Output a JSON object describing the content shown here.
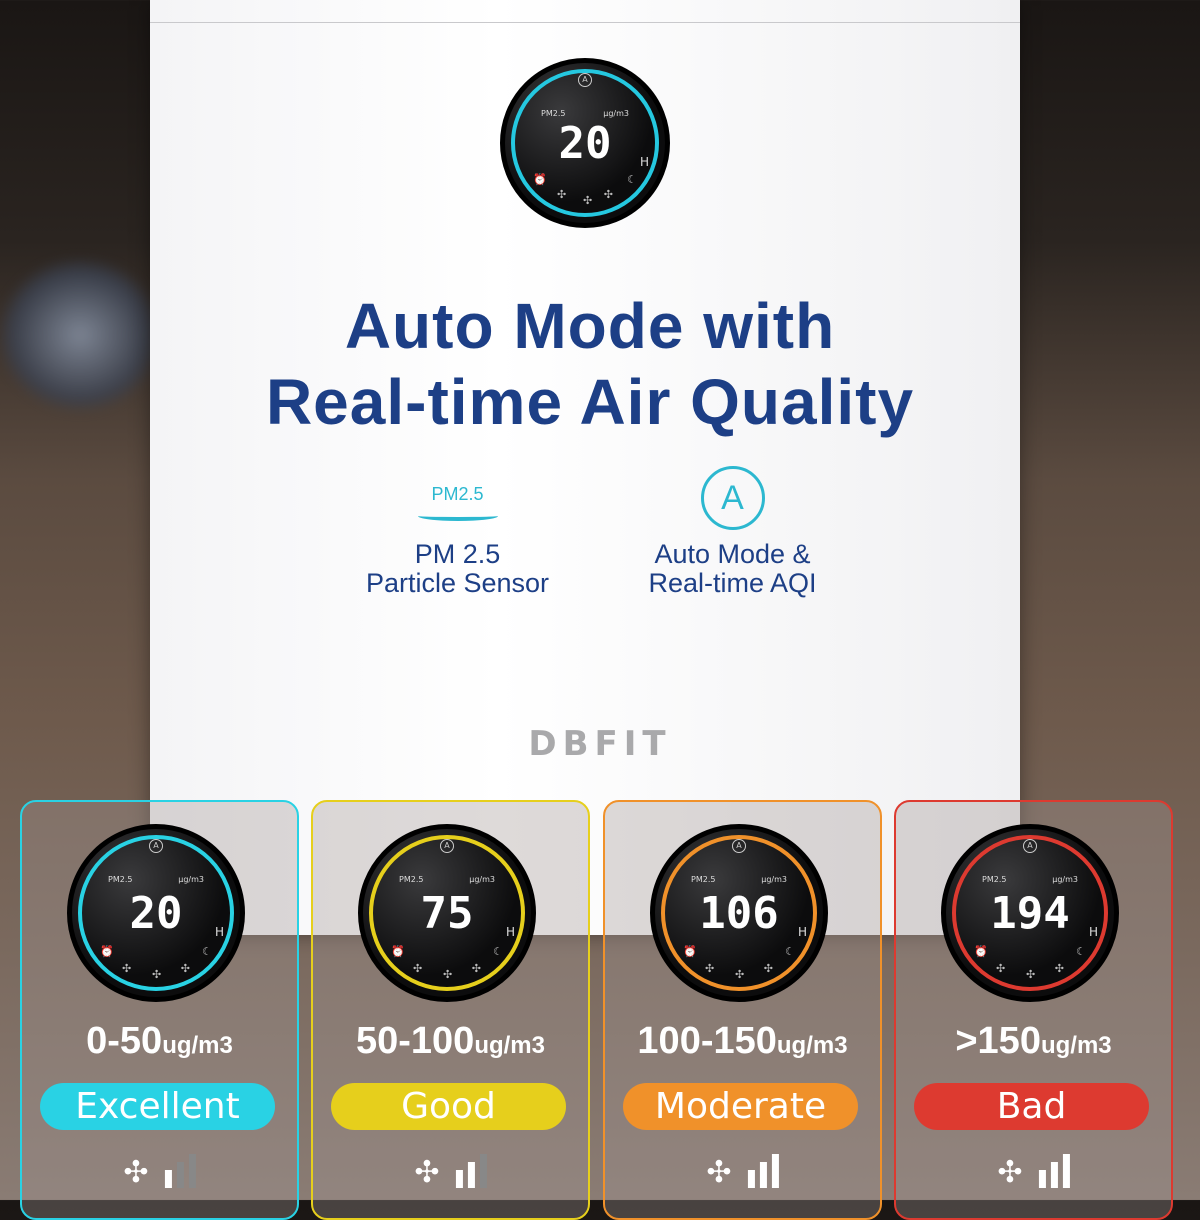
{
  "headline": {
    "line1": "Auto Mode with",
    "line2": "Real-time Air Quality"
  },
  "features": [
    {
      "icon": "pm25-particle-icon",
      "icon_text": "PM2.5",
      "line1": "PM 2.5",
      "line2": "Particle Sensor"
    },
    {
      "icon": "auto-mode-a-icon",
      "icon_text": "A",
      "line1": "Auto Mode &",
      "line2": "Real-time AQI"
    }
  ],
  "brand": "DBFIT",
  "top_display": {
    "label": "PM2.5",
    "unit": "μg/m3",
    "value": "20",
    "hours": "H",
    "auto": "A",
    "ring_color": "#25c8e0"
  },
  "levels": [
    {
      "value": "20",
      "range": "0-50",
      "unit": "ug/m3",
      "status": "Excellent",
      "color": "#29d2e4",
      "fan_level": 1
    },
    {
      "value": "75",
      "range": "50-100",
      "unit": "ug/m3",
      "status": "Good",
      "color": "#e6cf1c",
      "fan_level": 2
    },
    {
      "value": "106",
      "range": "100-150",
      "unit": "ug/m3",
      "status": "Moderate",
      "color": "#f0912a",
      "fan_level": 3
    },
    {
      "value": "194",
      "range": ">150",
      "unit": "ug/m3",
      "status": "Bad",
      "color": "#dd3a30",
      "fan_level": 3
    }
  ],
  "display_labels": {
    "pm": "PM2.5",
    "unit": "μg/m3",
    "hours": "H",
    "auto": "A"
  }
}
